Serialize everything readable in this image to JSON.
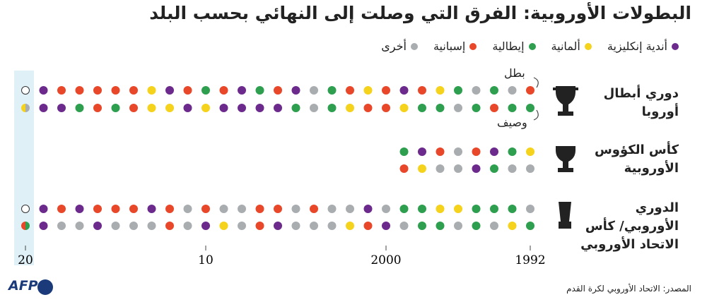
{
  "chart_data": {
    "type": "dot_matrix",
    "title": "البطولات الأوروبية: الفرق التي وصلت إلى النهائي بحسب البلد",
    "legend": [
      {
        "name": "أندية إنكليزية",
        "color": "#6b2a8c"
      },
      {
        "name": "ألمانية",
        "color": "#f5d21c"
      },
      {
        "name": "إيطالية",
        "color": "#2e9e4f"
      },
      {
        "name": "إسبانية",
        "color": "#e8472a"
      },
      {
        "name": "أخرى",
        "color": "#a9adb0"
      }
    ],
    "start_year": 1992,
    "xlim": [
      1992,
      2020
    ],
    "xticks": [
      1992,
      2000,
      {
        "value": 2010,
        "label": "10"
      },
      {
        "value": 2020,
        "label": "20"
      }
    ],
    "winner_label": "بطل",
    "runner_up_label": "وصيف",
    "competitions": [
      {
        "name": "دوري أبطال أوروبا",
        "winners": [
          3,
          4,
          2,
          4,
          2,
          1,
          3,
          0,
          3,
          1,
          3,
          2,
          4,
          0,
          3,
          2,
          0,
          3,
          2,
          3,
          0,
          1,
          3,
          3,
          3,
          3,
          3,
          0
        ],
        "runners_up": [
          2,
          2,
          3,
          2,
          4,
          2,
          2,
          1,
          3,
          3,
          1,
          2,
          4,
          2,
          0,
          0,
          0,
          0,
          1,
          0,
          1,
          1,
          3,
          2,
          3,
          2,
          0,
          0
        ],
        "pending": {
          "year": 2020,
          "winner": null,
          "finalists": [
            1,
            4
          ]
        }
      },
      {
        "name": "كأس الكؤوس الأوروبية",
        "winners": [
          1,
          2,
          0,
          3,
          4,
          3,
          0,
          2
        ],
        "runners_up": [
          4,
          4,
          2,
          0,
          4,
          4,
          1,
          3
        ]
      },
      {
        "name": "الدوري الأوروبي/ كأس الاتحاد الأوروبي",
        "winners": [
          4,
          2,
          2,
          2,
          1,
          1,
          2,
          2,
          4,
          0,
          4,
          4,
          3,
          4,
          3,
          3,
          4,
          4,
          3,
          4,
          3,
          0,
          3,
          3,
          3,
          0,
          3,
          0
        ],
        "runners_up": [
          2,
          1,
          4,
          2,
          4,
          2,
          2,
          4,
          0,
          3,
          1,
          4,
          4,
          4,
          0,
          3,
          4,
          1,
          0,
          4,
          3,
          4,
          4,
          4,
          0,
          4,
          4,
          0
        ],
        "pending": {
          "year": 2020,
          "winner": null,
          "finalists": [
            3,
            2
          ]
        }
      }
    ],
    "source": "المصدر: الاتحاد الأوروبي لكرة القدم",
    "logo": "AFP"
  }
}
